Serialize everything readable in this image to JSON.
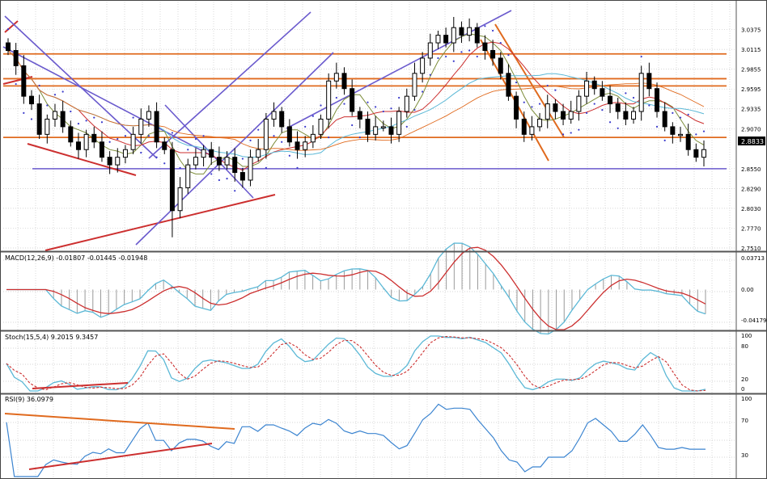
{
  "colors": {
    "bg": "#ffffff",
    "grid": "#c9c9c9",
    "candle": "#000000",
    "orange": "#e06a1e",
    "purple": "#6a5acd",
    "red": "#cc2f2f",
    "cyan": "#5bb8d6",
    "blue": "#3b84d0",
    "olive": "#7d8d3a",
    "sar": "#3a3acb"
  },
  "main": {
    "current_price": "2.8833",
    "price_labels": [
      "3.0375",
      "3.0115",
      "2.9855",
      "2.9595",
      "2.9335",
      "2.9070",
      "2.8550",
      "2.8290",
      "2.8030",
      "2.7770",
      "2.7510"
    ]
  },
  "macd": {
    "label": "MACD(12,26,9) -0.01807 -0.01445 -0.01948",
    "scale_labels": [
      "0.03713",
      "0.00",
      "-0.04179"
    ]
  },
  "stoch": {
    "label": "Stoch(15,5,4) 9.2015 9.3457",
    "scale_labels": [
      "100",
      "80",
      "20",
      "0"
    ]
  },
  "rsi": {
    "label": "RSI(9) 36.0979",
    "scale_labels": [
      "100",
      "70",
      "30"
    ]
  },
  "chart_data": {
    "type": "candlestick",
    "price_ylim": [
      2.751,
      3.0635
    ],
    "current_price": 2.8833,
    "candles_close_approx": [
      3.01,
      2.99,
      2.95,
      2.94,
      2.9,
      2.92,
      2.93,
      2.91,
      2.89,
      2.88,
      2.9,
      2.89,
      2.87,
      2.86,
      2.87,
      2.88,
      2.9,
      2.92,
      2.93,
      2.89,
      2.88,
      2.8,
      2.83,
      2.86,
      2.87,
      2.88,
      2.87,
      2.86,
      2.87,
      2.85,
      2.84,
      2.87,
      2.88,
      2.92,
      2.93,
      2.91,
      2.89,
      2.88,
      2.89,
      2.9,
      2.92,
      2.97,
      2.98,
      2.96,
      2.93,
      2.92,
      2.9,
      2.91,
      2.91,
      2.9,
      2.93,
      2.95,
      2.98,
      3.0,
      3.02,
      3.03,
      3.02,
      3.04,
      3.03,
      3.04,
      3.02,
      3.01,
      3.0,
      2.98,
      2.95,
      2.92,
      2.9,
      2.91,
      2.92,
      2.94,
      2.93,
      2.92,
      2.93,
      2.95,
      2.97,
      2.96,
      2.95,
      2.94,
      2.93,
      2.92,
      2.93,
      2.98,
      2.96,
      2.93,
      2.91,
      2.9,
      2.9,
      2.88,
      2.87,
      2.88
    ],
    "horizontal_levels": [
      {
        "price": 3.0055,
        "color": "orange"
      },
      {
        "price": 2.973,
        "color": "orange"
      },
      {
        "price": 2.9635,
        "color": "orange"
      },
      {
        "price": 2.896,
        "color": "orange"
      },
      {
        "price": 2.855,
        "color": "purple"
      }
    ],
    "indicators": [
      "MACD(12,26,9)",
      "Stoch(15,5,4)",
      "RSI(9)"
    ],
    "macd_values": {
      "macd": -0.01807,
      "signal": -0.01445,
      "hist": -0.01948
    },
    "stoch_values": {
      "k": 9.2015,
      "d": 9.3457
    },
    "rsi_value": 36.0979
  }
}
